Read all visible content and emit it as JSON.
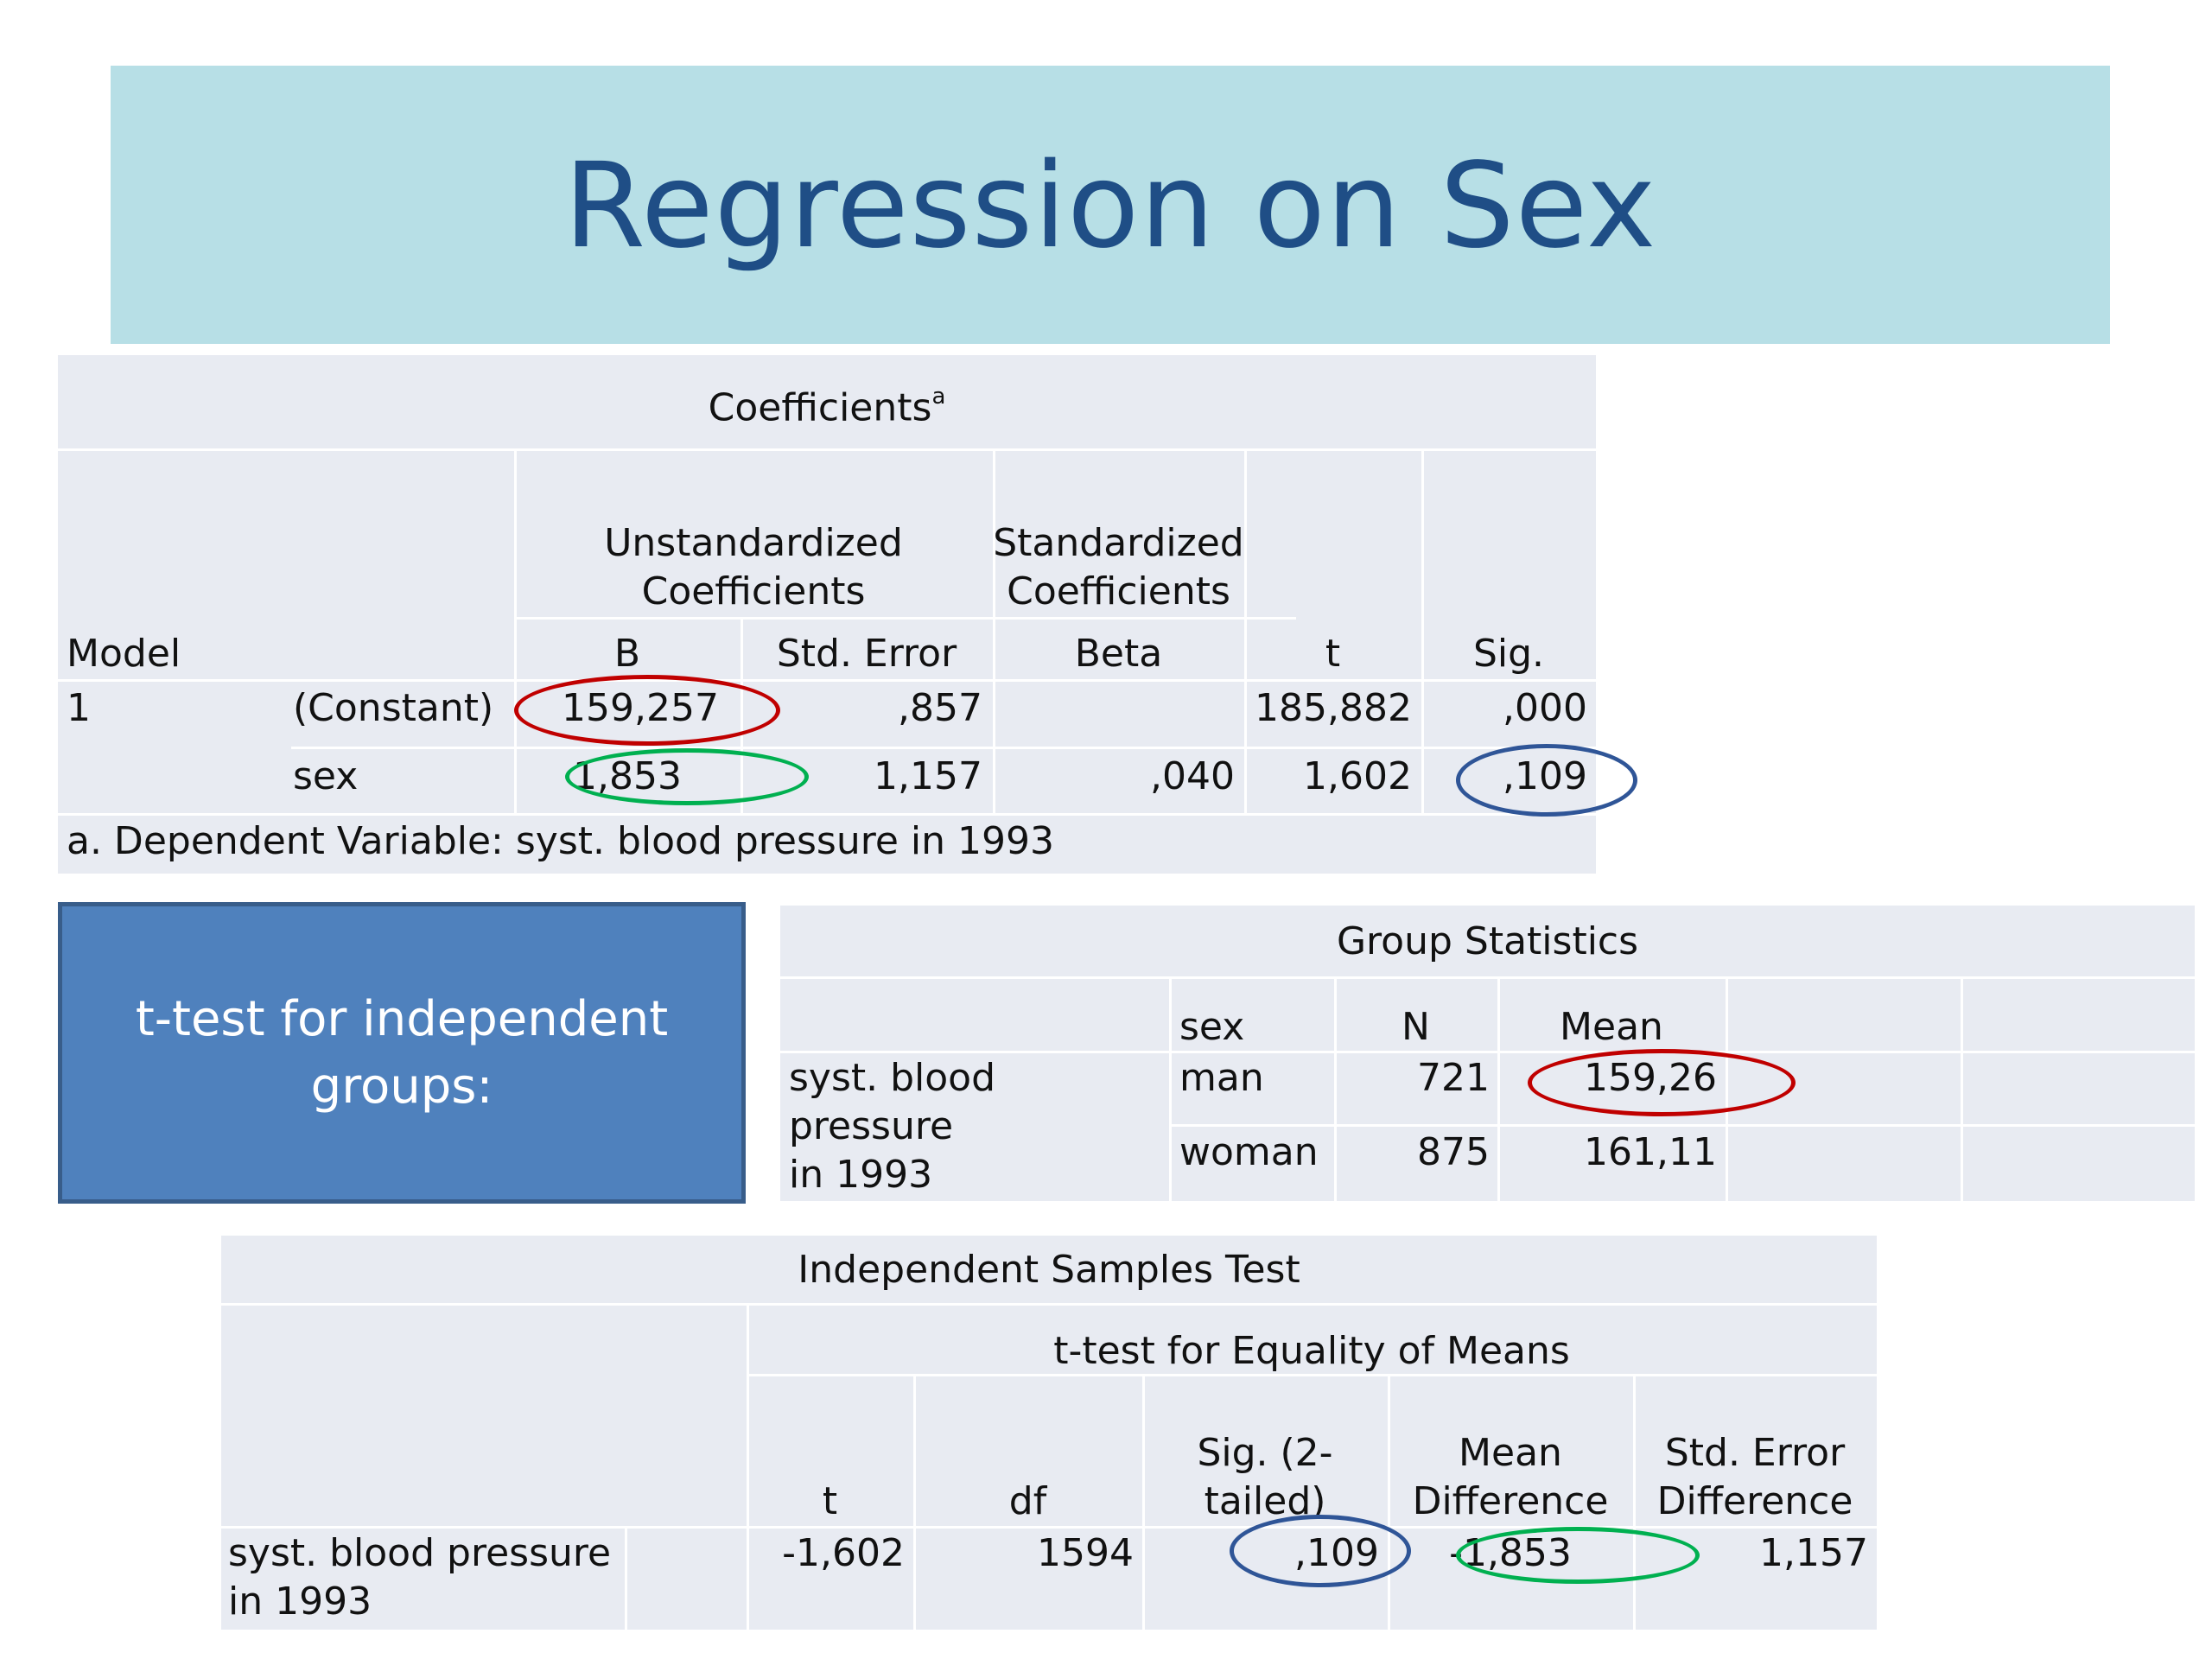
{
  "slide": {
    "title": "Regression on Sex"
  },
  "coefficients_table": {
    "title": "Coefficients",
    "title_footnote_mark": "a",
    "header": {
      "model": "Model",
      "unstandardized": "Unstandardized\nCoefficients",
      "standardized": "Standardized\nCoefficients",
      "b": "B",
      "std_error": "Std. Error",
      "beta": "Beta",
      "t": "t",
      "sig": "Sig."
    },
    "rows": [
      {
        "model": "1",
        "term": "(Constant)",
        "b": "159,257",
        "std_error": ",857",
        "beta": "",
        "t": "185,882",
        "sig": ",000"
      },
      {
        "model": "",
        "term": "sex",
        "b": "1,853",
        "std_error": "1,157",
        "beta": ",040",
        "t": "1,602",
        "sig": ",109"
      }
    ],
    "footnote": "a. Dependent Variable: syst. blood pressure in 1993"
  },
  "ttest_label": {
    "text": "t-test for independent\ngroups:"
  },
  "group_statistics": {
    "title": "Group Statistics",
    "header": {
      "sex": "sex",
      "n": "N",
      "mean": "Mean"
    },
    "variable": "syst. blood pressure\nin 1993",
    "rows": [
      {
        "sex": "man",
        "n": "721",
        "mean": "159,26"
      },
      {
        "sex": "woman",
        "n": "875",
        "mean": "161,11"
      }
    ]
  },
  "independent_samples_test": {
    "title": "Independent Samples Test",
    "group_header": "t-test for Equality of Means",
    "header": {
      "t": "t",
      "df": "df",
      "sig": "Sig. (2-\ntailed)",
      "mean_diff": "Mean\nDifference",
      "se_diff": "Std. Error\nDifference"
    },
    "row": {
      "variable": "syst. blood pressure\nin 1993",
      "t": "-1,602",
      "df": "1594",
      "sig": ",109",
      "mean_diff": "-1,853",
      "se_diff": "1,157"
    }
  },
  "highlight_colors": {
    "red": "#c00000",
    "green": "#00b050",
    "blue": "#2f5597"
  }
}
